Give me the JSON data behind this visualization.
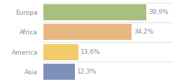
{
  "categories": [
    "Europa",
    "Africa",
    "America",
    "Asia"
  ],
  "values": [
    39.9,
    34.2,
    13.6,
    12.3
  ],
  "labels": [
    "39,9%",
    "34,2%",
    "13,6%",
    "12,3%"
  ],
  "bar_colors": [
    "#a8bf7f",
    "#e8b882",
    "#f0cc6a",
    "#8090bc"
  ],
  "background_color": "#ffffff",
  "text_color": "#888888",
  "xlim": [
    0,
    50
  ],
  "label_fontsize": 6.5,
  "category_fontsize": 6.5,
  "bar_height": 0.82
}
